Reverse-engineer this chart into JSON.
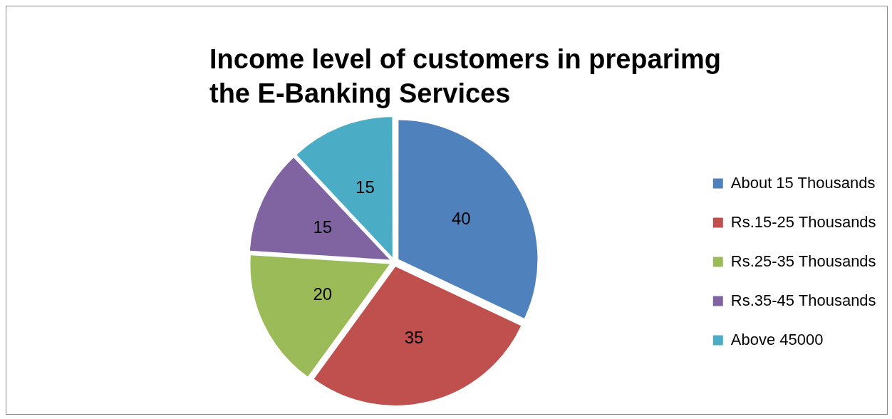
{
  "chart_data": {
    "type": "pie",
    "title": "Income level of customers in preparimg the E-Banking Services",
    "categories": [
      "About 15 Thousands",
      "Rs.15-25 Thousands",
      "Rs.25-35 Thousands",
      "Rs.35-45 Thousands",
      "Above 45000"
    ],
    "values": [
      40,
      35,
      20,
      15,
      15
    ],
    "colors": [
      "#4f81bd",
      "#c0504d",
      "#9bbb59",
      "#8064a2",
      "#4bacc6"
    ],
    "data_labels": true,
    "legend": "right"
  }
}
